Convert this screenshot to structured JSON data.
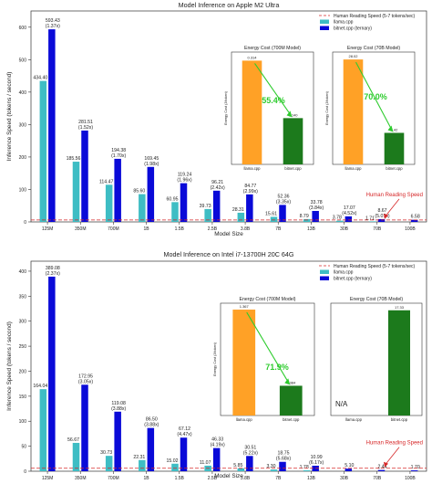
{
  "chart_data": [
    {
      "type": "bar",
      "title": "Model Inference on Apple M2 Ultra",
      "xlabel": "Model Size",
      "ylabel": "Inference Speed (tokens / second)",
      "ylim": [
        0,
        650
      ],
      "yticks": [
        0,
        100,
        200,
        300,
        400,
        500,
        600
      ],
      "categories": [
        "125M",
        "350M",
        "700M",
        "1B",
        "1.5B",
        "2.5B",
        "3.8B",
        "7B",
        "13B",
        "30B",
        "70B",
        "100B"
      ],
      "series": [
        {
          "name": "llama.cpp",
          "color": "#3ebdc4",
          "values": [
            434.4,
            185.56,
            114.47,
            85.6,
            60.95,
            39.73,
            28.31,
            15.61,
            8.79,
            3.78,
            1.71,
            null
          ],
          "labels": [
            "434.40",
            "185.56",
            "114.47",
            "85.60",
            "60.95",
            "39.73",
            "28.31",
            "15.61",
            "8.79",
            "3.78",
            "1.71",
            ""
          ]
        },
        {
          "name": "bitnet.cpp (ternary)",
          "color": "#0a0ad8",
          "values": [
            593.43,
            281.51,
            194.38,
            169.45,
            119.24,
            96.21,
            84.77,
            52.36,
            33.78,
            17.07,
            8.67,
            6.58
          ],
          "labels": [
            "593.43\n(1.37x)",
            "281.51\n(1.52x)",
            "194.38\n(1.70x)",
            "169.45\n(1.98x)",
            "119.24\n(1.96x)",
            "96.21\n(2.42x)",
            "84.77\n(2.99x)",
            "52.36\n(3.35x)",
            "33.78\n(3.84x)",
            "17.07\n(4.52x)",
            "8.67\n(5.07x)",
            "6.58"
          ]
        }
      ],
      "reference_line": {
        "name": "Human Reading Speed (5-7 tokens/sec)",
        "value": 6,
        "color": "#d62728"
      },
      "annotation": "Human Reading Speed",
      "legend_position": "top-right",
      "insets": [
        {
          "title": "Energy Cost (700M Model)",
          "ylabel": "Energy Cost (J/token)",
          "ylim": [
            0,
            0.34
          ],
          "categories": [
            "llama.cpp",
            "bitnet.cpp"
          ],
          "values": [
            0.314,
            0.14
          ],
          "labels": [
            "0.314",
            "0.140"
          ],
          "colors": [
            "#ffa126",
            "#1c7a1c"
          ],
          "reduction": "55.4%"
        },
        {
          "title": "Energy Cost (70B Model)",
          "ylabel": "Energy Cost (J/token)",
          "ylim": [
            0,
            30
          ],
          "categories": [
            "llama.cpp",
            "bitnet.cpp"
          ],
          "values": [
            28.02,
            8.42
          ],
          "labels": [
            "28.02",
            "8.42"
          ],
          "colors": [
            "#ffa126",
            "#1c7a1c"
          ],
          "reduction": "70.0%"
        }
      ]
    },
    {
      "type": "bar",
      "title": "Model Inference on Intel i7-13700H 20C 64G",
      "xlabel": "Model Size",
      "ylabel": "Inference Speed (tokens / second)",
      "ylim": [
        0,
        420
      ],
      "yticks": [
        0,
        50,
        100,
        150,
        200,
        250,
        300,
        350,
        400
      ],
      "categories": [
        "125M",
        "350M",
        "700M",
        "1B",
        "1.5B",
        "2.5B",
        "3.8B",
        "7B",
        "13B",
        "30B",
        "70B",
        "100B"
      ],
      "series": [
        {
          "name": "llama.cpp",
          "color": "#3ebdc4",
          "values": [
            164.04,
            56.67,
            30.73,
            22.31,
            15.02,
            11.07,
            5.85,
            3.3,
            1.78,
            null,
            null,
            null
          ],
          "labels": [
            "164.04",
            "56.67",
            "30.73",
            "22.31",
            "15.02",
            "11.07",
            "5.85",
            "3.30",
            "1.78",
            "",
            "",
            ""
          ]
        },
        {
          "name": "bitnet.cpp (ternary)",
          "color": "#0a0ad8",
          "values": [
            389.08,
            172.95,
            119.08,
            86.5,
            67.12,
            46.33,
            30.51,
            18.75,
            10.99,
            5.1,
            2.44,
            1.7
          ],
          "labels": [
            "389.08\n(2.37x)",
            "172.95\n(3.05x)",
            "119.08\n(3.88x)",
            "86.50\n(3.88x)",
            "67.12\n(4.47x)",
            "46.33\n(4.19x)",
            "30.51\n(5.22x)",
            "18.75\n(5.68x)",
            "10.99\n(6.17x)",
            "5.10",
            "2.44",
            "1.70"
          ]
        }
      ],
      "reference_line": {
        "name": "Human Reading Speed (5-7 tokens/sec)",
        "value": 6,
        "color": "#d62728"
      },
      "annotation": "Human Reading Speed",
      "legend_position": "top-right",
      "insets": [
        {
          "title": "Energy Cost (700M Model)",
          "ylabel": "Energy Cost (J/token)",
          "ylim": [
            0,
            1.45
          ],
          "categories": [
            "llama.cpp",
            "bitnet.cpp"
          ],
          "values": [
            1.367,
            0.384
          ],
          "labels": [
            "1.367",
            "0.384"
          ],
          "colors": [
            "#ffa126",
            "#1c7a1c"
          ],
          "reduction": "71.9%"
        },
        {
          "title": "Energy Cost (70B Model)",
          "ylabel": "",
          "ylim": [
            0,
            18.5
          ],
          "categories": [
            "llama.cpp",
            "bitnet.cpp"
          ],
          "values": [
            null,
            17.33
          ],
          "labels": [
            "",
            "17.33"
          ],
          "colors": [
            "#ffa126",
            "#1c7a1c"
          ],
          "reduction": "",
          "na_label": "N/A"
        }
      ]
    }
  ]
}
